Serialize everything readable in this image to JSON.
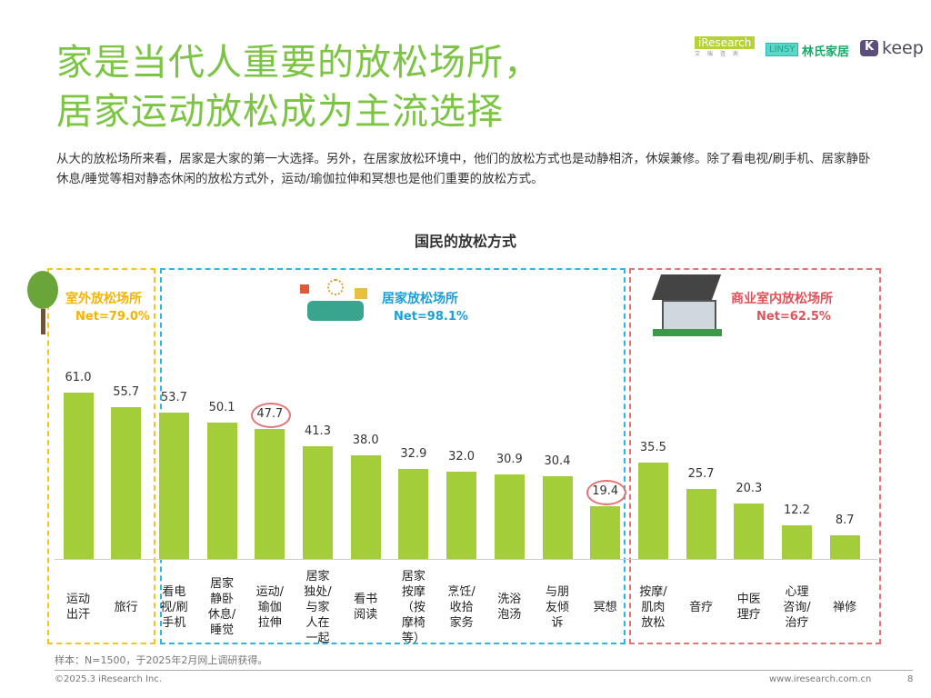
{
  "header": {
    "title_line1": "家是当代人重要的放松场所，",
    "title_line2": "居家运动放松成为主流选择",
    "description": "从大的放松场所来看，居家是大家的第一大选择。另外，在居家放松环境中，他们的放松方式也是动静相济，休娱兼修。除了看电视/刷手机、居家静卧休息/睡觉等相对静态休闲的放松方式外，运动/瑜伽拉伸和冥想也是他们重要的放松方式。",
    "logos": {
      "iresearch": "iResearch",
      "iresearch_sub": "艾 瑞 咨 询",
      "linsy": "LINSY",
      "linsy_cn": "林氏家居",
      "keep": "keep"
    }
  },
  "chart_data": {
    "type": "bar",
    "title": "国民的放松方式",
    "categories": [
      "运动\n出汗",
      "旅行",
      "看电\n视/刷\n手机",
      "居家\n静卧\n休息/\n睡觉",
      "运动/\n瑜伽\n拉伸",
      "居家\n独处/\n与家\n人在\n一起",
      "看书\n阅读",
      "居家\n按摩\n（按\n摩椅\n等）",
      "烹饪/\n收拾\n家务",
      "洗浴\n泡汤",
      "与朋\n友倾\n诉",
      "冥想",
      "按摩/\n肌肉\n放松",
      "音疗",
      "中医\n理疗",
      "心理\n咨询/\n治疗",
      "禅修"
    ],
    "values": [
      61.0,
      55.7,
      53.7,
      50.1,
      47.7,
      41.3,
      38.0,
      32.9,
      32.0,
      30.9,
      30.4,
      19.4,
      35.5,
      25.7,
      20.3,
      12.2,
      8.7
    ],
    "highlighted": [
      "运动/\n瑜伽\n拉伸",
      "冥想"
    ],
    "bar_color": "#a4cd3a",
    "groups": [
      {
        "name": "室外放松场所",
        "net": "Net=79.0%",
        "color": "#f5c518"
      },
      {
        "name": "居家放松场所",
        "net": "Net=98.1%",
        "color": "#29b6e8"
      },
      {
        "name": "商业室内放松场所",
        "net": "Net=62.5%",
        "color": "#e57373"
      }
    ]
  },
  "footer": {
    "note": "样本：N=1500，于2025年2月网上调研获得。",
    "copyright": "©2025.3 iResearch Inc.",
    "url": "www.iresearch.com.cn",
    "page": "8"
  }
}
